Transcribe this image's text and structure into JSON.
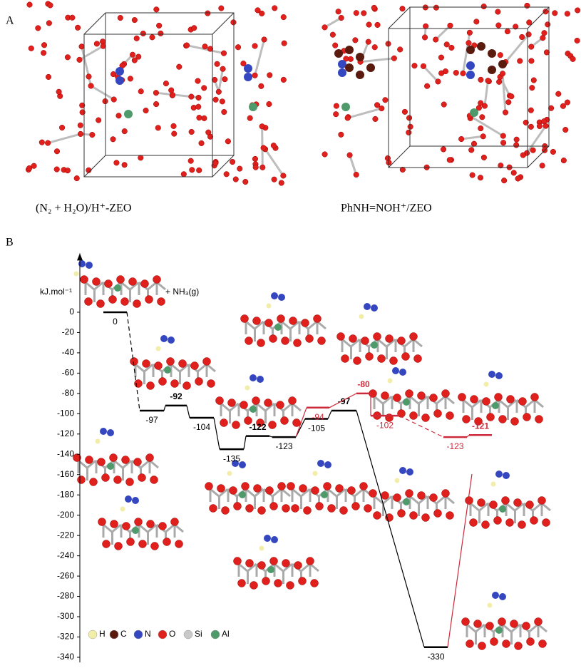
{
  "panel_a": {
    "label": "A",
    "captions": [
      "(N₂ + H₂O)/H⁺-ZEO",
      "PhNH=NOH⁺/ZEO"
    ]
  },
  "chart_data": {
    "type": "energy-profile",
    "label": "B",
    "y_label": "kJ.mol⁻¹",
    "annotation": "+ NH₃(g)",
    "ylim": [
      -345,
      58
    ],
    "yticks": [
      0,
      -20,
      -40,
      -60,
      -80,
      -100,
      -120,
      -140,
      -160,
      -180,
      -200,
      -220,
      -240,
      -260,
      -280,
      -300,
      -320,
      -340
    ],
    "series": [
      {
        "color": "#000000",
        "values": [
          0,
          -97,
          -92,
          -104,
          -135,
          -122,
          -123,
          -105,
          -97,
          -330
        ],
        "highlight": [
          false,
          false,
          true,
          false,
          false,
          true,
          false,
          false,
          true,
          false
        ]
      },
      {
        "color": "#cc2a3a",
        "values": [
          -94,
          -80,
          -102,
          -123,
          -121
        ],
        "highlight": [
          false,
          true,
          false,
          false,
          true
        ]
      }
    ],
    "legend": [
      {
        "name": "H",
        "color": "#f2eeaa"
      },
      {
        "name": "C",
        "color": "#5a1a0e"
      },
      {
        "name": "N",
        "color": "#3446c0"
      },
      {
        "name": "O",
        "color": "#e0201c"
      },
      {
        "name": "Si",
        "color": "#c9c9c9"
      },
      {
        "name": "Al",
        "color": "#4e9a6a"
      }
    ]
  }
}
